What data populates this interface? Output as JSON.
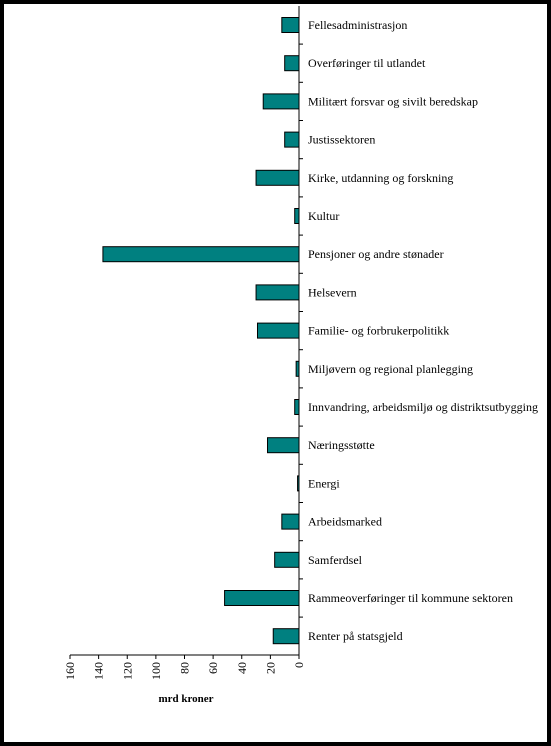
{
  "chart_data": {
    "type": "bar",
    "orientation": "horizontal",
    "categories": [
      "Fellesadministrasjon",
      "Overføringer til utlandet",
      "Militært forsvar og sivilt beredskap",
      "Justissektoren",
      "Kirke, utdanning og forskning",
      "Kultur",
      "Pensjoner og andre stønader",
      "Helsevern",
      "Familie- og forbrukerpolitikk",
      "Miljøvern og regional planlegging",
      "Innvandring, arbeidsmiljø og distriktsutbygging",
      "Næringsstøtte",
      "Energi",
      "Arbeidsmarked",
      "Samferdsel",
      "Rammeoverføringer til kommune sektoren",
      "Renter på statsgjeld"
    ],
    "values": [
      12,
      10,
      25,
      10,
      30,
      3,
      137,
      30,
      29,
      2,
      3,
      22,
      1,
      12,
      17,
      52,
      18
    ],
    "xlabel": "mrd kroner",
    "ylabel": "",
    "xlim": [
      0,
      160
    ],
    "x_reversed": true,
    "ticks": [
      0,
      20,
      40,
      60,
      80,
      100,
      120,
      140,
      160
    ],
    "bar_color": "#008080",
    "grid": false,
    "legend": "none"
  }
}
